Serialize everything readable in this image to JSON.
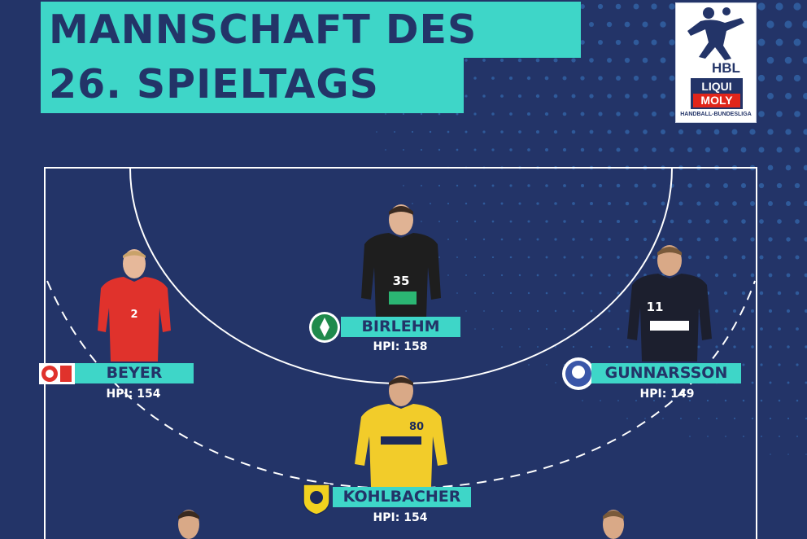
{
  "title": {
    "line1": "MANNSCHAFT DES",
    "line2": "26. SPIELTAGS"
  },
  "logo": {
    "hbl": "HBL",
    "sponsor_top": "LIQUI",
    "sponsor_bottom": "MOLY",
    "league": "HANDBALL-BUNDESLIGA"
  },
  "colors": {
    "background": "#233468",
    "accent": "#3ed6c8",
    "dots": "#2f5a9a"
  },
  "players": [
    {
      "key": "birlehm",
      "name": "BIRLEHM",
      "points": "HPI: 158",
      "jersey_number": "35",
      "jersey_color": "#1e1e1e",
      "club_icon": "club-crest-green"
    },
    {
      "key": "beyer",
      "name": "BEYER",
      "points": "HPI: 154",
      "jersey_number": "2",
      "jersey_color": "#e0322c",
      "club_icon": "club-crest-red"
    },
    {
      "key": "gunnarsson",
      "name": "GUNNARSSON",
      "points": "HPI: 149",
      "jersey_number": "11",
      "jersey_color": "#1c1f2e",
      "club_icon": "club-crest-blue"
    },
    {
      "key": "kohlbacher",
      "name": "KOHLBACHER",
      "points": "HPI: 154",
      "jersey_number": "80",
      "jersey_color": "#f2cc2a",
      "club_icon": "club-crest-yellow"
    }
  ]
}
